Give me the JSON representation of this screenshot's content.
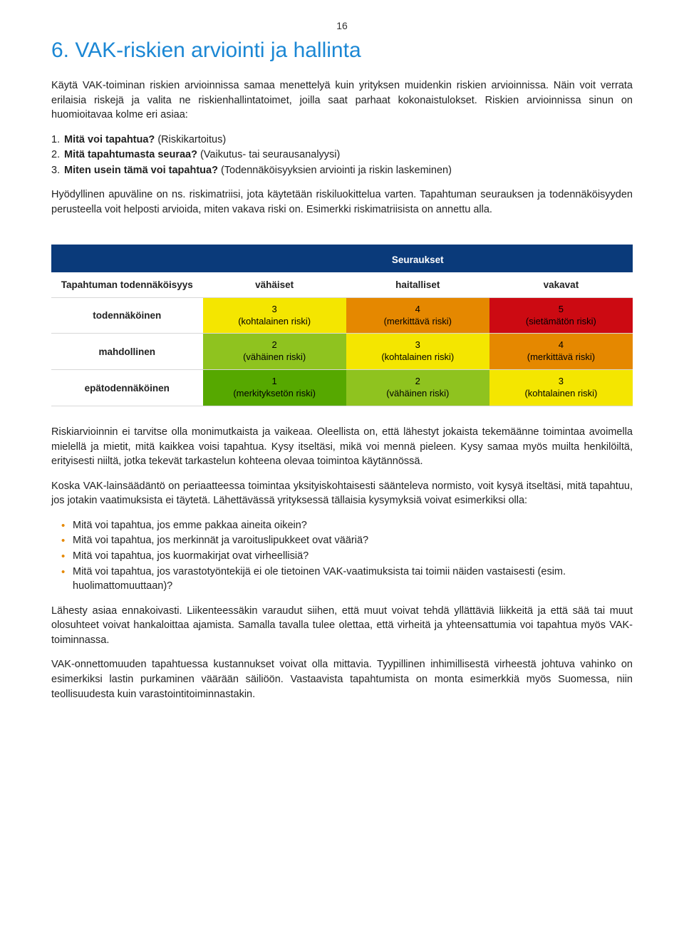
{
  "pageNumber": "16",
  "title_color": "#1b87d4",
  "title": "6. VAK-riskien arviointi ja hallinta",
  "intro1": "Käytä VAK-toiminan riskien arvioinnissa samaa menettelyä kuin yrityksen muidenkin riskien arvioinnissa. Näin voit verrata erilaisia riskejä ja valita ne riskienhallintatoimet, joilla saat parhaat kokonaistulokset. Riskien arvioinnissa sinun on huomioitavaa kolme eri asiaa:",
  "questions": [
    {
      "num": "1.",
      "bold": "Mitä voi tapahtua?",
      "rest": " (Riskikartoitus)"
    },
    {
      "num": "2.",
      "bold": "Mitä tapahtumasta seuraa?",
      "rest": " (Vaikutus- tai seurausanalyysi)"
    },
    {
      "num": "3.",
      "bold": "Miten usein tämä voi tapahtua?",
      "rest": " (Todennäköisyyksien arviointi ja riskin laskeminen)"
    }
  ],
  "intro2": "Hyödyllinen apuväline on ns. riskimatriisi, jota käytetään riskiluokittelua varten. Tapahtuman seurauksen ja todennäköisyyden perusteella voit helposti arvioida, miten vakava riski on. Esimerkki riskimatriisista on annettu alla.",
  "matrix": {
    "border_top_color": "#0a3a7a",
    "header_bg": "#0a3a7a",
    "group_header": "Seuraukset",
    "corner_header": "Tapahtuman todennäköisyys",
    "col_headers": [
      "vähäiset",
      "haitalliset",
      "vakavat"
    ],
    "row_headers": [
      "todennäköinen",
      "mahdollinen",
      "epätodennäköinen"
    ],
    "cells": [
      [
        {
          "n": "3",
          "label": "(kohtalainen riski)",
          "bg": "#f4e600"
        },
        {
          "n": "4",
          "label": "(merkittävä riski)",
          "bg": "#e58800"
        },
        {
          "n": "5",
          "label": "(sietämätön riski)",
          "bg": "#cc0a12"
        }
      ],
      [
        {
          "n": "2",
          "label": "(vähäinen riski)",
          "bg": "#8fc31f"
        },
        {
          "n": "3",
          "label": "(kohtalainen riski)",
          "bg": "#f4e600"
        },
        {
          "n": "4",
          "label": "(merkittävä riski)",
          "bg": "#e58800"
        }
      ],
      [
        {
          "n": "1",
          "label": "(merkityksetön riski)",
          "bg": "#56a800"
        },
        {
          "n": "2",
          "label": "(vähäinen riski)",
          "bg": "#8fc31f"
        },
        {
          "n": "3",
          "label": "(kohtalainen riski)",
          "bg": "#f4e600"
        }
      ]
    ]
  },
  "para1": "Riskiarvioinnin ei tarvitse olla monimutkaista ja vaikeaa. Oleellista on, että lähestyt jokaista tekemäänne toimintaa avoimella mielellä ja mietit, mitä kaikkea voisi tapahtua. Kysy itseltäsi, mikä voi mennä pieleen. Kysy samaa myös muilta henkilöiltä, erityisesti niiltä, jotka tekevät tarkastelun kohteena olevaa toimintoa käytännössä.",
  "para2": "Koska VAK-lainsäädäntö on periaatteessa toimintaa yksityiskohtaisesti säänteleva normisto, voit kysyä itseltäsi, mitä tapahtuu, jos jotakin vaatimuksista ei täytetä. Lähettävässä yrityksessä tällaisia kysymyksiä voivat esimerkiksi olla:",
  "bullet_color": "#e58800",
  "bullets": [
    "Mitä voi tapahtua, jos emme pakkaa aineita oikein?",
    "Mitä voi tapahtua, jos merkinnät ja varoituslipukkeet ovat vääriä?",
    "Mitä voi tapahtua, jos kuormakirjat ovat virheellisiä?",
    "Mitä voi tapahtua, jos varastotyöntekijä ei ole tietoinen VAK-vaatimuksista tai toimii näiden vastaisesti (esim. huolimattomuuttaan)?"
  ],
  "para3": "Lähesty asiaa ennakoivasti. Liikenteessäkin varaudut siihen, että muut voivat tehdä yllättäviä liikkeitä ja että sää tai muut olosuhteet voivat hankaloittaa ajamista. Samalla tavalla tulee olettaa, että virheitä ja yhteensattumia voi tapahtua myös VAK-toiminnassa.",
  "para4": "VAK-onnettomuuden tapahtuessa kustannukset voivat olla mittavia. Tyypillinen inhimillisestä virheestä johtuva vahinko on esimerkiksi lastin purkaminen väärään säiliöön. Vastaavista tapahtumista on monta esimerkkiä myös Suomessa, niin teollisuudesta kuin varastointitoiminnastakin."
}
